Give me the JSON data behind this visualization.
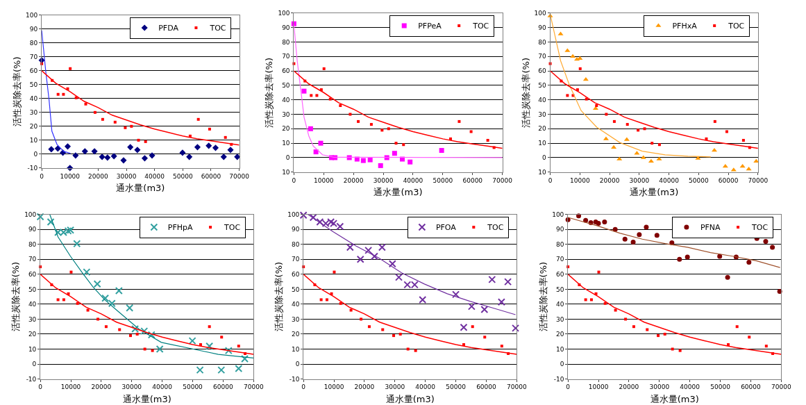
{
  "chart_data": [
    {
      "type": "scatter",
      "xlabel": "通水量(m3)",
      "ylabel": "活性炭除去率(%)",
      "xlim": [
        0,
        70000
      ],
      "ylim": [
        -10,
        100
      ],
      "xticks": [
        0,
        10000,
        20000,
        30000,
        40000,
        50000,
        60000,
        70000
      ],
      "yticks": [
        -10,
        0,
        10,
        20,
        30,
        40,
        50,
        60,
        70,
        80,
        90,
        100
      ],
      "grid": "y",
      "legend": "top right",
      "series": [
        {
          "name": "PFDA",
          "color": "#000080",
          "marker": "diamond",
          "x": [
            0,
            3400,
            5700,
            7500,
            9200,
            10000,
            12000,
            15300,
            18700,
            21400,
            23300,
            25600,
            29000,
            31400,
            33900,
            36500,
            39100,
            49900,
            52300,
            55200,
            59200,
            61600,
            64500,
            66900,
            69300
          ],
          "values": [
            67.5,
            3.5,
            4,
            1,
            5.5,
            -10,
            -1,
            2,
            2,
            -2,
            -2.5,
            -1.5,
            -4.5,
            5,
            3,
            -3,
            -1,
            1,
            -2,
            5,
            6,
            4.5,
            -2,
            3,
            -2
          ]
        },
        {
          "name": "TOC",
          "color": "#ff0000",
          "marker": "square",
          "x": [
            0,
            3700,
            5800,
            7700,
            9200,
            10100,
            12200,
            15600,
            18900,
            21600,
            26000,
            29600,
            31800,
            34300,
            36800,
            52600,
            55500,
            59500,
            65100,
            67200
          ],
          "values": [
            65,
            53,
            43,
            43,
            47,
            61.5,
            40.5,
            36,
            30,
            25,
            23,
            19,
            20,
            10,
            9,
            13,
            25,
            18,
            12,
            7
          ]
        },
        {
          "type": "line",
          "color": "#3333ff",
          "line_style": "solid",
          "x": [
            0,
            1400,
            2600,
            3600,
            5400,
            7800,
            10200
          ],
          "values": [
            89,
            60,
            39,
            16.5,
            7,
            2,
            0.5
          ]
        },
        {
          "type": "line",
          "color": "#ff0000",
          "line_style": "solid",
          "x": [
            0,
            5000,
            10000,
            15000,
            20000,
            25000,
            30000,
            35000,
            40000,
            45000,
            50000,
            55000,
            60000,
            65000,
            70000
          ],
          "values": [
            60,
            51,
            45,
            38,
            33.5,
            28,
            24.5,
            21,
            18,
            15.5,
            13,
            11,
            9.5,
            8,
            6.5
          ]
        }
      ]
    },
    {
      "type": "scatter",
      "xlabel": "通水量(m3)",
      "ylabel": "活性炭除去率(%)",
      "xlim": [
        0,
        70000
      ],
      "ylim": [
        -10,
        100
      ],
      "xticks": [
        0,
        10000,
        20000,
        30000,
        40000,
        50000,
        60000,
        70000
      ],
      "yticks": [
        {
          "value": -10,
          "label": "10"
        },
        0,
        10,
        20,
        30,
        40,
        50,
        60,
        70,
        80,
        90,
        100
      ],
      "grid": "y",
      "legend": "top right",
      "series": [
        {
          "name": "PFPeA",
          "color": "#ff00ff",
          "marker": "square",
          "x": [
            0,
            3400,
            5600,
            7400,
            9000,
            12600,
            13800,
            18600,
            21200,
            23300,
            25600,
            29100,
            31200,
            33800,
            36400,
            39000,
            49600
          ],
          "values": [
            92.6,
            46,
            20,
            4,
            10,
            0,
            0,
            0,
            -1,
            -2,
            -1.5,
            -5.5,
            0,
            3,
            -1,
            -3,
            5
          ]
        },
        {
          "name": "TOC",
          "color": "#ff0000",
          "marker": "square",
          "x": [
            0,
            3700,
            5800,
            7700,
            9200,
            10100,
            12200,
            15600,
            18900,
            21600,
            26000,
            29600,
            31800,
            34300,
            36800,
            52600,
            55500,
            59500,
            65100,
            67200
          ],
          "values": [
            65,
            53,
            43,
            43,
            47,
            61.5,
            40.5,
            36,
            30,
            25,
            23,
            19,
            20,
            10,
            9,
            13,
            25,
            18,
            12,
            7
          ]
        },
        {
          "type": "line",
          "color": "#ff66ff",
          "line_style": "solid",
          "x": [
            0,
            1100,
            2300,
            3400,
            5000,
            6500,
            9600,
            13400,
            70000
          ],
          "values": [
            92,
            67,
            47,
            28,
            15,
            8,
            2,
            0.3,
            0
          ]
        },
        {
          "type": "line",
          "color": "#ff0000",
          "line_style": "solid",
          "x": [
            0,
            5000,
            10000,
            15000,
            20000,
            25000,
            30000,
            35000,
            40000,
            45000,
            50000,
            55000,
            60000,
            65000,
            70000
          ],
          "values": [
            60,
            51,
            45,
            38,
            33.5,
            28,
            24.5,
            21,
            18,
            15.5,
            13,
            11,
            9.5,
            8,
            6.5
          ]
        }
      ]
    },
    {
      "type": "scatter",
      "xlabel": "通水量(m3)",
      "ylabel": "活性炭除去率(%)",
      "xlim": [
        0,
        70000
      ],
      "ylim": [
        -10,
        100
      ],
      "xticks": [
        0,
        10000,
        20000,
        30000,
        40000,
        50000,
        60000,
        70000
      ],
      "yticks": [
        {
          "value": -10,
          "label": "10"
        },
        0,
        10,
        20,
        30,
        40,
        50,
        60,
        70,
        80,
        90,
        100
      ],
      "grid": "y",
      "legend": "top right",
      "series": [
        {
          "name": "PFHxA",
          "color": "#ff9900",
          "marker": "triangle",
          "x": [
            0,
            3500,
            5800,
            7600,
            9000,
            10000,
            12000,
            15300,
            18800,
            21400,
            23300,
            25800,
            29200,
            31400,
            34000,
            36700,
            49800,
            55300,
            59000,
            61800,
            64800,
            66900,
            69400
          ],
          "values": [
            98,
            85.5,
            74,
            70,
            68,
            68.5,
            54,
            34,
            13,
            7,
            -1,
            12.5,
            3,
            0,
            -2.5,
            -1,
            -0.5,
            5,
            -6,
            -8.5,
            -6,
            -8,
            -2.5
          ]
        },
        {
          "name": "TOC",
          "color": "#ff0000",
          "marker": "square",
          "x": [
            0,
            3700,
            5800,
            7700,
            9200,
            10100,
            12200,
            15600,
            18900,
            21600,
            26000,
            29600,
            31800,
            34300,
            36800,
            52600,
            55500,
            59500,
            65100,
            67200
          ],
          "values": [
            65,
            53,
            43,
            43,
            47,
            61.5,
            40.5,
            36,
            30,
            25,
            23,
            19,
            20,
            10,
            9,
            13,
            25,
            18,
            12,
            7
          ]
        },
        {
          "type": "line",
          "color": "#ffaa33",
          "line_style": "solid",
          "x": [
            0,
            3500,
            6500,
            10400,
            15700,
            23400,
            31000,
            38700,
            46400,
            54100
          ],
          "values": [
            99,
            67,
            50,
            32.5,
            21,
            10.5,
            4.5,
            2,
            1,
            0.5
          ]
        },
        {
          "type": "line",
          "color": "#ff0000",
          "line_style": "solid",
          "x": [
            0,
            5000,
            10000,
            15000,
            20000,
            25000,
            30000,
            35000,
            40000,
            45000,
            50000,
            55000,
            60000,
            65000,
            70000
          ],
          "values": [
            60,
            51,
            45,
            38,
            33.5,
            28,
            24.5,
            21,
            18,
            15.5,
            13,
            11,
            9.5,
            8,
            6.5
          ]
        }
      ]
    },
    {
      "type": "scatter",
      "xlabel": "通水量(m3)",
      "ylabel": "活性炭除去率(%)",
      "xlim": [
        0,
        70000
      ],
      "ylim": [
        -10,
        100
      ],
      "xticks": [
        0,
        10000,
        20000,
        30000,
        40000,
        50000,
        60000,
        70000
      ],
      "yticks": [
        -10,
        0,
        10,
        20,
        30,
        40,
        50,
        60,
        70,
        80,
        90,
        100
      ],
      "grid": "y",
      "legend": "top right",
      "series": [
        {
          "name": "PFHpA",
          "color": "#33a0a0",
          "marker": "cross",
          "x": [
            0,
            3400,
            5800,
            7600,
            9100,
            9900,
            12000,
            15200,
            18700,
            21300,
            23500,
            25800,
            29300,
            31100,
            34100,
            36500,
            39200,
            49900,
            52400,
            55500,
            59400,
            61800,
            65100,
            67100
          ],
          "values": [
            98.5,
            95,
            88,
            88,
            89,
            89.5,
            80.5,
            61.5,
            53.5,
            44,
            40.5,
            49,
            37.5,
            23.5,
            22,
            19.5,
            10,
            15.5,
            -4,
            12,
            -4,
            9,
            -3,
            3.5
          ]
        },
        {
          "name": "TOC",
          "color": "#ff0000",
          "marker": "square",
          "x": [
            0,
            3700,
            5800,
            7700,
            9200,
            10100,
            12200,
            15600,
            18900,
            21600,
            26000,
            29600,
            31800,
            34300,
            36800,
            52600,
            55500,
            59500,
            65100,
            67200
          ],
          "values": [
            65,
            53,
            43,
            43,
            47,
            61.5,
            40.5,
            36,
            30,
            25,
            23,
            19,
            20,
            10,
            9,
            13,
            25,
            18,
            12,
            7
          ]
        },
        {
          "type": "line",
          "color": "#008080",
          "line_style": "solid",
          "x": [
            3100,
            5800,
            9900,
            13600,
            17300,
            21100,
            24800,
            32300,
            39700,
            50200,
            58400,
            70000
          ],
          "values": [
            100,
            85,
            72,
            61.5,
            51.5,
            43,
            36.5,
            23.5,
            14.5,
            10,
            6.5,
            4
          ]
        },
        {
          "type": "line",
          "color": "#ff0000",
          "line_style": "solid",
          "x": [
            0,
            5000,
            10000,
            15000,
            20000,
            25000,
            30000,
            35000,
            40000,
            45000,
            50000,
            55000,
            60000,
            65000,
            70000
          ],
          "values": [
            60,
            51,
            45,
            38,
            33.5,
            28,
            24.5,
            21,
            18,
            15.5,
            13,
            11,
            9.5,
            8,
            6.5
          ]
        }
      ]
    },
    {
      "type": "scatter",
      "xlabel": "通水量(m3)",
      "ylabel": "活性炭除去率(%)",
      "xlim": [
        0,
        70000
      ],
      "ylim": [
        -10,
        100
      ],
      "xticks": [
        0,
        10000,
        20000,
        30000,
        40000,
        50000,
        60000,
        70000
      ],
      "yticks": [
        -10,
        0,
        10,
        20,
        30,
        40,
        50,
        60,
        70,
        80,
        90,
        100
      ],
      "grid": "y",
      "legend": "top right",
      "series": [
        {
          "name": "PFOA",
          "color": "#7030a0",
          "marker": "cross",
          "x": [
            0,
            3200,
            5400,
            7300,
            9000,
            9900,
            12000,
            15300,
            18700,
            21300,
            23300,
            25800,
            29200,
            31300,
            34100,
            36500,
            39100,
            50000,
            52600,
            55200,
            59400,
            61900,
            65000,
            67100,
            69600
          ],
          "values": [
            99.5,
            98,
            95,
            94,
            95,
            94,
            92,
            78,
            70,
            76,
            72,
            78,
            67,
            58,
            53,
            53,
            43,
            46.5,
            24.5,
            38.5,
            36.5,
            56.5,
            41.5,
            55,
            24
          ]
        },
        {
          "name": "TOC",
          "color": "#ff0000",
          "marker": "square",
          "x": [
            0,
            3700,
            5800,
            7700,
            9200,
            10100,
            12200,
            15600,
            18900,
            21600,
            26000,
            29600,
            31800,
            34300,
            36800,
            52600,
            55500,
            59500,
            65100,
            67200
          ],
          "values": [
            65,
            53,
            43,
            43,
            47,
            61.5,
            40.5,
            36,
            30,
            25,
            23,
            19,
            20,
            10,
            9,
            13,
            25,
            18,
            12,
            7
          ]
        },
        {
          "type": "line",
          "color": "#7030a0",
          "line_style": "solid",
          "x": [
            1500,
            9700,
            17200,
            24700,
            32200,
            39700,
            47200,
            54600,
            62100,
            69600
          ],
          "values": [
            100,
            88.5,
            79,
            71,
            61,
            53.5,
            47,
            42,
            37.5,
            33
          ]
        },
        {
          "type": "line",
          "color": "#ff0000",
          "line_style": "solid",
          "x": [
            0,
            5000,
            10000,
            15000,
            20000,
            25000,
            30000,
            35000,
            40000,
            45000,
            50000,
            55000,
            60000,
            65000,
            70000
          ],
          "values": [
            60,
            51,
            45,
            38,
            33.5,
            28,
            24.5,
            21,
            18,
            15.5,
            13,
            11,
            9.5,
            8,
            6.5
          ]
        }
      ]
    },
    {
      "type": "scatter",
      "xlabel": "通水量(m3)",
      "ylabel": "活性炭除去率(%)",
      "xlim": [
        0,
        70000
      ],
      "ylim": [
        -10,
        100
      ],
      "xticks": [
        0,
        10000,
        20000,
        30000,
        40000,
        50000,
        60000,
        70000
      ],
      "yticks": [
        -10,
        0,
        10,
        20,
        30,
        40,
        50,
        60,
        70,
        80,
        90,
        100
      ],
      "grid": "y",
      "legend": "top right",
      "series": [
        {
          "name": "PFNA",
          "color": "#800000",
          "marker": "circle",
          "x": [
            0,
            3500,
            5800,
            7500,
            9100,
            10000,
            12000,
            15500,
            18700,
            21400,
            23400,
            25700,
            29200,
            34100,
            36600,
            39200,
            49800,
            52400,
            55200,
            59400,
            62000,
            64900,
            67100,
            69500
          ],
          "values": [
            96.5,
            99,
            96,
            94.5,
            95,
            94,
            95,
            90,
            83.5,
            81.5,
            86.5,
            91.5,
            86,
            81,
            70,
            71.5,
            72,
            58,
            71.5,
            68,
            84,
            82,
            78,
            48.5
          ]
        },
        {
          "name": "TOC",
          "color": "#ff0000",
          "marker": "square",
          "x": [
            0,
            3700,
            5800,
            7700,
            9200,
            10100,
            12200,
            15600,
            18900,
            21600,
            26000,
            29600,
            31800,
            34300,
            36800,
            52600,
            55500,
            59500,
            65100,
            67200
          ],
          "values": [
            65,
            53,
            43,
            43,
            47,
            61.5,
            40.5,
            36,
            30,
            25,
            23,
            19,
            20,
            10,
            9,
            13,
            25,
            18,
            12,
            7
          ]
        },
        {
          "type": "line",
          "color": "#a0522d",
          "line_style": "solid",
          "x": [
            0,
            9500,
            17000,
            24400,
            31900,
            39400,
            46800,
            54300,
            61800,
            69600
          ],
          "values": [
            98,
            92.5,
            87.5,
            83.5,
            80.5,
            78,
            74.5,
            72,
            69,
            64.5
          ]
        },
        {
          "type": "line",
          "color": "#ff0000",
          "line_style": "solid",
          "x": [
            0,
            5000,
            10000,
            15000,
            20000,
            25000,
            30000,
            35000,
            40000,
            45000,
            50000,
            55000,
            60000,
            65000,
            70000
          ],
          "values": [
            60,
            51,
            45,
            38,
            33.5,
            28,
            24.5,
            21,
            18,
            15.5,
            13,
            11,
            9.5,
            8,
            6.5
          ]
        }
      ]
    }
  ]
}
